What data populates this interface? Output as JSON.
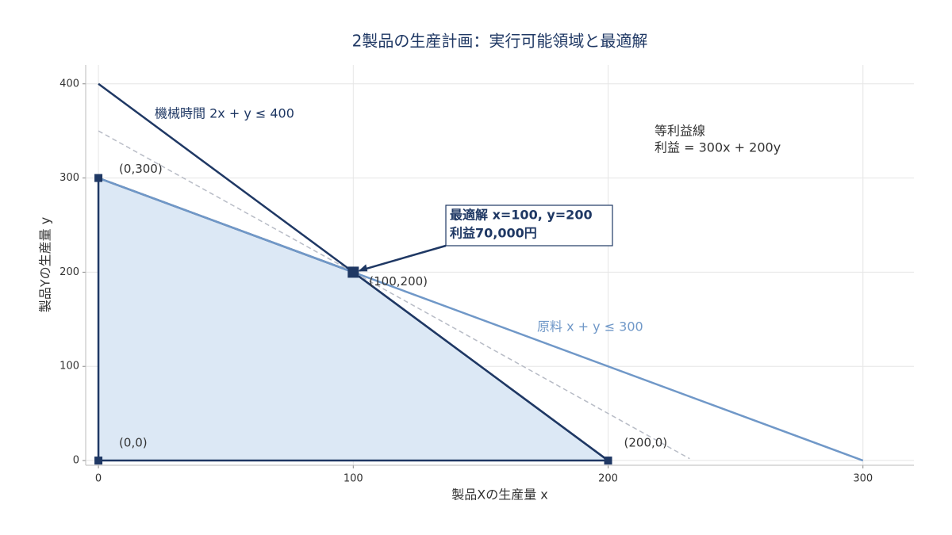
{
  "chart_data": {
    "type": "line",
    "title": "2製品の生産計画：実行可能領域と最適解",
    "x_label": "製品Xの生産量 x",
    "y_label": "製品Yの生産量 y",
    "xlim": [
      -5,
      320
    ],
    "ylim": [
      -5,
      420
    ],
    "xticks": [
      0,
      100,
      200,
      300
    ],
    "yticks": [
      0,
      100,
      200,
      300,
      400
    ],
    "grid": true,
    "series": [
      {
        "name": "機械時間 2x + y ≤ 400",
        "color": "#1f3864",
        "x": [
          0,
          200
        ],
        "values": [
          400,
          0
        ]
      },
      {
        "name": "原料 x + y ≤ 300",
        "color": "#7098c8",
        "x": [
          0,
          300
        ],
        "values": [
          300,
          0
        ]
      },
      {
        "color": "#b8bcc6",
        "dashed": true,
        "x": [
          0,
          232
        ],
        "values": [
          350,
          2
        ]
      }
    ],
    "iso_label": [
      "等利益線",
      "利益 = 300x + 200y"
    ],
    "region": {
      "color": "#dce8f5",
      "edge_color": "#1f3864",
      "x": [
        0,
        0,
        100,
        200
      ],
      "values": [
        0,
        300,
        200,
        0
      ]
    },
    "vertices": {
      "color": "#1f3864",
      "x": [
        0,
        0,
        100,
        200
      ],
      "values": [
        0,
        300,
        200,
        0
      ],
      "labels": [
        "(0,0)",
        "(0,300)",
        "(100,200)",
        "(200,0)"
      ]
    },
    "optimum": {
      "x": 100,
      "y": 200,
      "lines": [
        "最適解 x=100, y=200",
        "利益70,000円"
      ]
    }
  }
}
